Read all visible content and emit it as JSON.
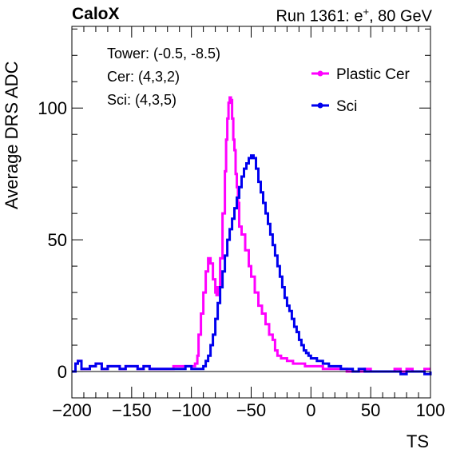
{
  "header": {
    "experiment": "CaloX",
    "run_prefix": "Run 1361: e",
    "run_charge": "+",
    "run_suffix": ", 80 GeV"
  },
  "chart_data": {
    "type": "line",
    "xlabel": "TS",
    "ylabel": "Average DRS ADC",
    "xlim": [
      -200,
      100
    ],
    "ylim": [
      -10,
      131
    ],
    "x_ticks": [
      -200,
      -150,
      -100,
      -50,
      0,
      50,
      100
    ],
    "y_ticks": [
      0,
      50,
      100
    ],
    "grid": false,
    "legend_position": "top-right",
    "info_text": [
      "Tower: (-0.5, -8.5)",
      "Cer: (4,3,2)",
      "Sci: (4,3,5)"
    ],
    "series": [
      {
        "name": "Plastic Cer",
        "color": "#ff00ff",
        "points": [
          [
            -200,
            0
          ],
          [
            -197,
            3
          ],
          [
            -195,
            4
          ],
          [
            -192,
            1
          ],
          [
            -188,
            1
          ],
          [
            -185,
            2
          ],
          [
            -180,
            3
          ],
          [
            -175,
            1
          ],
          [
            -170,
            2
          ],
          [
            -165,
            2
          ],
          [
            -160,
            1
          ],
          [
            -155,
            2
          ],
          [
            -150,
            2
          ],
          [
            -145,
            1
          ],
          [
            -140,
            2
          ],
          [
            -135,
            1
          ],
          [
            -130,
            1
          ],
          [
            -125,
            1
          ],
          [
            -120,
            1
          ],
          [
            -115,
            2
          ],
          [
            -110,
            2
          ],
          [
            -105,
            2
          ],
          [
            -100,
            2
          ],
          [
            -97,
            3
          ],
          [
            -95,
            6
          ],
          [
            -94,
            14
          ],
          [
            -92,
            22
          ],
          [
            -90,
            30
          ],
          [
            -88,
            38
          ],
          [
            -86,
            43
          ],
          [
            -84,
            41
          ],
          [
            -82,
            35
          ],
          [
            -80,
            30
          ],
          [
            -79,
            29
          ],
          [
            -78,
            32
          ],
          [
            -76,
            43
          ],
          [
            -74,
            60
          ],
          [
            -72,
            76
          ],
          [
            -71,
            88
          ],
          [
            -70,
            96
          ],
          [
            -69,
            102
          ],
          [
            -68,
            104
          ],
          [
            -67,
            103
          ],
          [
            -66,
            96
          ],
          [
            -65,
            88
          ],
          [
            -64,
            84
          ],
          [
            -63,
            75
          ],
          [
            -62,
            70
          ],
          [
            -61,
            64
          ],
          [
            -60,
            55
          ],
          [
            -58,
            52
          ],
          [
            -55,
            46
          ],
          [
            -52,
            40
          ],
          [
            -50,
            36
          ],
          [
            -47,
            30
          ],
          [
            -44,
            25
          ],
          [
            -41,
            22
          ],
          [
            -38,
            18
          ],
          [
            -35,
            14
          ],
          [
            -32,
            12
          ],
          [
            -30,
            8
          ],
          [
            -28,
            6
          ],
          [
            -25,
            5
          ],
          [
            -20,
            4
          ],
          [
            -15,
            3
          ],
          [
            -10,
            3
          ],
          [
            -5,
            2
          ],
          [
            0,
            2
          ],
          [
            5,
            2
          ],
          [
            10,
            1
          ],
          [
            15,
            1
          ],
          [
            20,
            1
          ],
          [
            25,
            1
          ],
          [
            30,
            0
          ],
          [
            35,
            0
          ],
          [
            40,
            0
          ],
          [
            45,
            1
          ],
          [
            50,
            0
          ],
          [
            55,
            0
          ],
          [
            60,
            0
          ],
          [
            65,
            0
          ],
          [
            70,
            1
          ],
          [
            75,
            0
          ],
          [
            80,
            1
          ],
          [
            85,
            0
          ],
          [
            90,
            0
          ],
          [
            95,
            1
          ],
          [
            100,
            1
          ]
        ]
      },
      {
        "name": "Sci",
        "color": "#0000ee",
        "points": [
          [
            -200,
            0
          ],
          [
            -197,
            3
          ],
          [
            -195,
            4
          ],
          [
            -192,
            1
          ],
          [
            -188,
            1
          ],
          [
            -185,
            2
          ],
          [
            -180,
            3
          ],
          [
            -175,
            1
          ],
          [
            -170,
            2
          ],
          [
            -165,
            2
          ],
          [
            -160,
            1
          ],
          [
            -155,
            2
          ],
          [
            -150,
            2
          ],
          [
            -145,
            1
          ],
          [
            -140,
            2
          ],
          [
            -135,
            1
          ],
          [
            -130,
            1
          ],
          [
            -125,
            1
          ],
          [
            -120,
            1
          ],
          [
            -115,
            1
          ],
          [
            -110,
            1
          ],
          [
            -105,
            2
          ],
          [
            -100,
            1
          ],
          [
            -96,
            1
          ],
          [
            -92,
            1
          ],
          [
            -90,
            2
          ],
          [
            -88,
            4
          ],
          [
            -86,
            6
          ],
          [
            -84,
            10
          ],
          [
            -82,
            14
          ],
          [
            -80,
            20
          ],
          [
            -78,
            26
          ],
          [
            -76,
            32
          ],
          [
            -74,
            38
          ],
          [
            -72,
            44
          ],
          [
            -70,
            50
          ],
          [
            -68,
            54
          ],
          [
            -66,
            58
          ],
          [
            -64,
            62
          ],
          [
            -62,
            66
          ],
          [
            -60,
            70
          ],
          [
            -58,
            74
          ],
          [
            -56,
            77
          ],
          [
            -54,
            79
          ],
          [
            -52,
            81
          ],
          [
            -50,
            82
          ],
          [
            -48,
            81
          ],
          [
            -46,
            77
          ],
          [
            -44,
            72
          ],
          [
            -42,
            68
          ],
          [
            -40,
            64
          ],
          [
            -38,
            60
          ],
          [
            -36,
            56
          ],
          [
            -34,
            52
          ],
          [
            -32,
            48
          ],
          [
            -30,
            44
          ],
          [
            -28,
            40
          ],
          [
            -26,
            36
          ],
          [
            -24,
            32
          ],
          [
            -22,
            28
          ],
          [
            -20,
            25
          ],
          [
            -18,
            23
          ],
          [
            -16,
            20
          ],
          [
            -14,
            17
          ],
          [
            -12,
            15
          ],
          [
            -10,
            12
          ],
          [
            -8,
            10
          ],
          [
            -6,
            8
          ],
          [
            -4,
            7
          ],
          [
            -2,
            6
          ],
          [
            0,
            5
          ],
          [
            5,
            4
          ],
          [
            10,
            3
          ],
          [
            15,
            2
          ],
          [
            20,
            2
          ],
          [
            25,
            1
          ],
          [
            30,
            1
          ],
          [
            35,
            0
          ],
          [
            40,
            1
          ],
          [
            45,
            0
          ],
          [
            50,
            0
          ],
          [
            55,
            0
          ],
          [
            60,
            0
          ],
          [
            65,
            0
          ],
          [
            70,
            0
          ],
          [
            75,
            -1
          ],
          [
            80,
            0
          ],
          [
            85,
            0
          ],
          [
            90,
            0
          ],
          [
            95,
            -1
          ],
          [
            100,
            0
          ]
        ]
      }
    ]
  }
}
